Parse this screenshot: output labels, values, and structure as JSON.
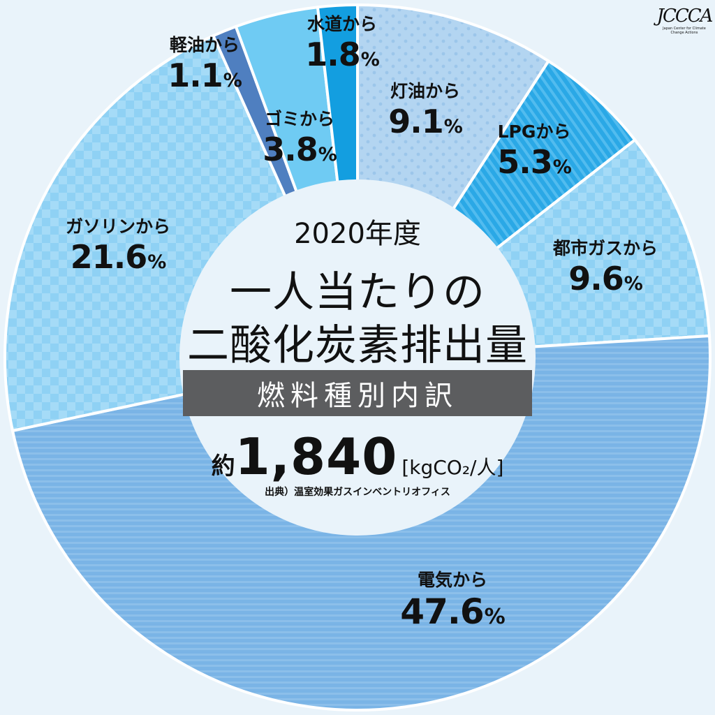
{
  "chart_data": {
    "type": "pie",
    "categories": [
      "灯油から",
      "LPGから",
      "都市ガスから",
      "電気から",
      "ガソリンから",
      "軽油から",
      "ゴミから",
      "水道から"
    ],
    "values": [
      9.1,
      5.3,
      9.6,
      47.6,
      21.6,
      1.1,
      3.8,
      1.8
    ],
    "value_labels": [
      "9.1",
      "5.3",
      "9.6",
      "47.6",
      "21.6",
      "1.1",
      "3.8",
      "1.8"
    ],
    "unit": "%",
    "colors": [
      "#b3d5f1",
      "#2aa8e6",
      "#8fd1f4",
      "#7ab4e6",
      "#8fd1f4",
      "#4f7fc0",
      "#6fcbf3",
      "#139ee0"
    ],
    "patterns": [
      "dots",
      "stripes-diagonal",
      "checker",
      "stripes-horizontal",
      "checker",
      "solid",
      "solid",
      "solid"
    ]
  },
  "center": {
    "year": "2020年度",
    "title_line1": "一人当たりの",
    "title_line2": "二酸化炭素排出量",
    "band": "燃料種別内訳",
    "total_prefix": "約",
    "total_value": "1,840",
    "total_unit": "[kgCO₂/人]",
    "source": "出典）温室効果ガスインベントリオフィス"
  },
  "logo": {
    "mark": "JCCCA",
    "subtitle": "Japan Center for Climate Change Actions"
  }
}
